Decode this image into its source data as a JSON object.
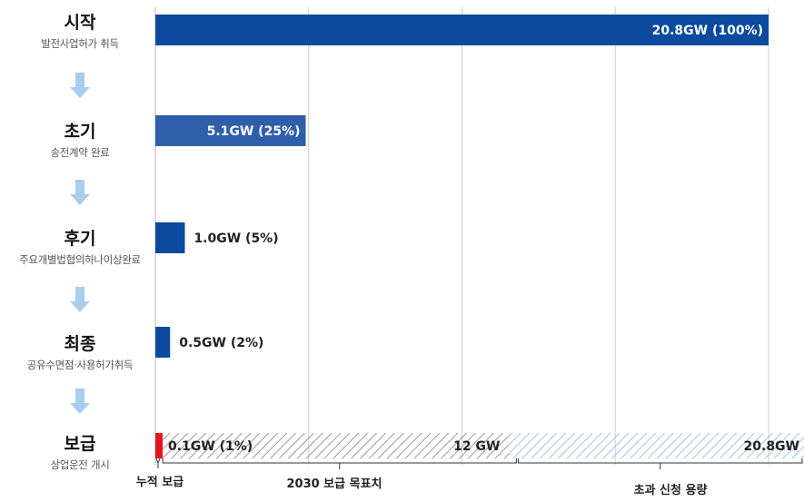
{
  "chart_data": {
    "type": "bar",
    "orientation": "horizontal",
    "title": "",
    "xlabel": "",
    "ylabel": "",
    "xlim": [
      0,
      21
    ],
    "grid": true,
    "stages": [
      {
        "name": "시작",
        "desc": "발전사업허가 취득",
        "value": 20.8,
        "label": "20.8GW (100%)",
        "color": "#0b4a9c"
      },
      {
        "name": "초기",
        "desc": "송전계약 완료",
        "value": 5.1,
        "label": "5.1GW (25%)",
        "color": "#2f5eab"
      },
      {
        "name": "후기",
        "desc": "주요개별법협의하나이상완료",
        "value": 1.0,
        "label": "1.0GW (5%)",
        "color": "#0b4a9c"
      },
      {
        "name": "최종",
        "desc": "공유수면점·사용허가취득",
        "value": 0.5,
        "label": "0.5GW (2%)",
        "color": "#0b4a9c"
      },
      {
        "name": "보급",
        "desc": "상업운전 개시",
        "value": 0.1,
        "label": "0.1GW (1%)",
        "color": "#e8141b"
      }
    ],
    "target": {
      "value": 12,
      "label": "12 GW",
      "pattern_color": "#9a9a9a"
    },
    "excess": {
      "value": 20.8,
      "label": "20.8GW",
      "pattern_color": "#9fc3e6"
    },
    "bottom_annotations": [
      {
        "label": "누적 보급",
        "from": 0,
        "to": 0.1
      },
      {
        "label": "2030 보급 목표치",
        "from": 0.1,
        "to": 12
      },
      {
        "label": "초과 신청 용량",
        "from": 12,
        "to": 20.8
      }
    ],
    "arrow_color": "#a9cdef",
    "grid_color": "#cfcfcf"
  }
}
